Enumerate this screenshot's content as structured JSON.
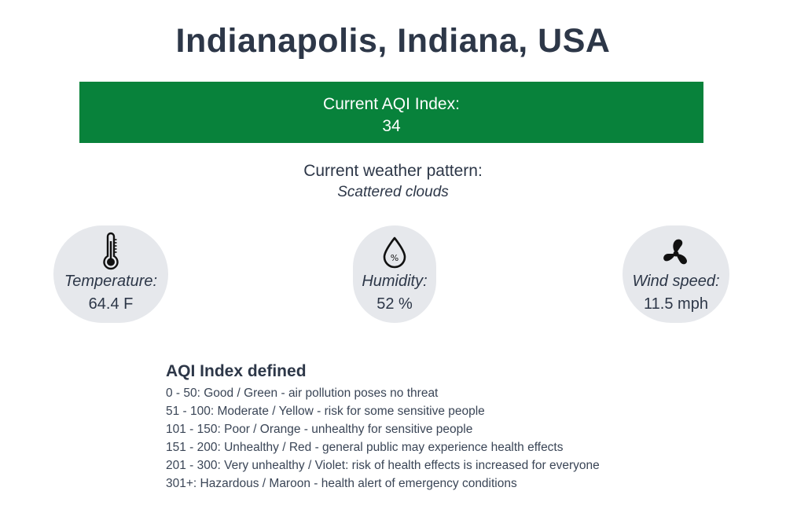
{
  "location": {
    "title": "Indianapolis, Indiana, USA"
  },
  "aqi": {
    "label": "Current AQI Index:",
    "value": "34",
    "color": "#08823b"
  },
  "weather": {
    "label": "Current weather pattern:",
    "value": "Scattered clouds"
  },
  "stats": {
    "temperature": {
      "icon": "thermometer-icon",
      "label": "Temperature:",
      "value": "64.4 F"
    },
    "humidity": {
      "icon": "humidity-drop-icon",
      "label": "Humidity:",
      "value": "52 %"
    },
    "wind": {
      "icon": "fan-icon",
      "label": "Wind speed:",
      "value": "11.5 mph"
    }
  },
  "legend": {
    "title": "AQI Index defined",
    "items": [
      "0 - 50: Good / Green - air pollution poses no threat",
      "51 - 100: Moderate / Yellow - risk for some sensitive people",
      "101 - 150: Poor / Orange - unhealthy for sensitive people",
      "151 - 200: Unhealthy / Red - general public may experience health effects",
      "201 - 300: Very unhealthy / Violet: risk of health effects is increased for everyone",
      "301+: Hazardous / Maroon - health alert of emergency conditions"
    ]
  }
}
